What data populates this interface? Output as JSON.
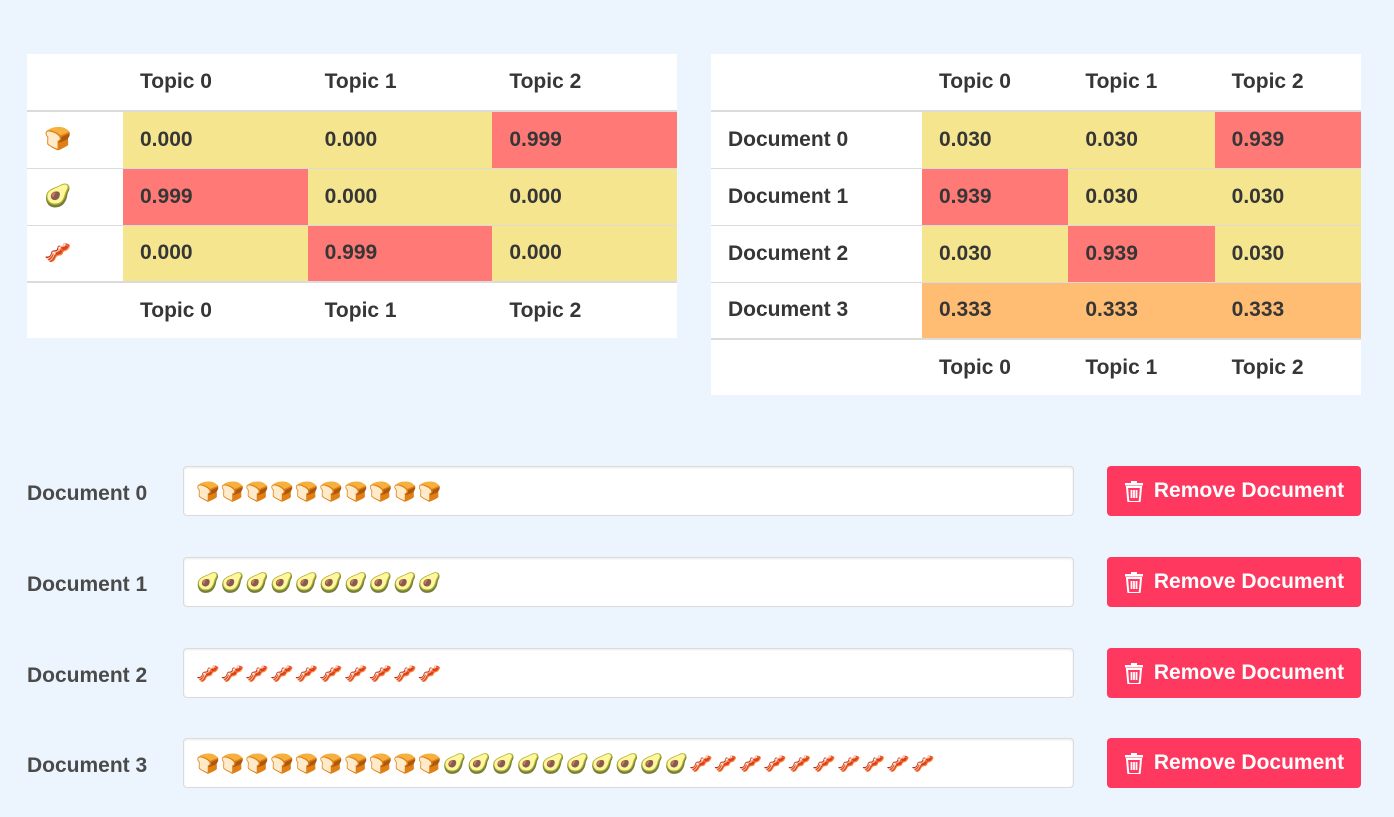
{
  "topics": [
    "Topic 0",
    "Topic 1",
    "Topic 2"
  ],
  "word_topic_table": {
    "rows": [
      {
        "word": "🍞",
        "values": [
          "0.000",
          "0.000",
          "0.999"
        ],
        "levels": [
          "lo",
          "lo",
          "hi"
        ]
      },
      {
        "word": "🥑",
        "values": [
          "0.999",
          "0.000",
          "0.000"
        ],
        "levels": [
          "hi",
          "lo",
          "lo"
        ]
      },
      {
        "word": "🥓",
        "values": [
          "0.000",
          "0.999",
          "0.000"
        ],
        "levels": [
          "lo",
          "hi",
          "lo"
        ]
      }
    ]
  },
  "doc_topic_table": {
    "rows": [
      {
        "doc": "Document 0",
        "values": [
          "0.030",
          "0.030",
          "0.939"
        ],
        "levels": [
          "lo",
          "lo",
          "hi"
        ]
      },
      {
        "doc": "Document 1",
        "values": [
          "0.939",
          "0.030",
          "0.030"
        ],
        "levels": [
          "hi",
          "lo",
          "lo"
        ]
      },
      {
        "doc": "Document 2",
        "values": [
          "0.030",
          "0.939",
          "0.030"
        ],
        "levels": [
          "lo",
          "hi",
          "lo"
        ]
      },
      {
        "doc": "Document 3",
        "values": [
          "0.333",
          "0.333",
          "0.333"
        ],
        "levels": [
          "mid",
          "mid",
          "mid"
        ]
      }
    ]
  },
  "level_colors": {
    "lo": "#f5e58f",
    "hi": "#ff7a76",
    "mid": "#ffbd73"
  },
  "documents": [
    {
      "label": "Document 0",
      "value": "🍞🍞🍞🍞🍞🍞🍞🍞🍞🍞"
    },
    {
      "label": "Document 1",
      "value": "🥑🥑🥑🥑🥑🥑🥑🥑🥑🥑"
    },
    {
      "label": "Document 2",
      "value": "🥓🥓🥓🥓🥓🥓🥓🥓🥓🥓"
    },
    {
      "label": "Document 3",
      "value": "🍞🍞🍞🍞🍞🍞🍞🍞🍞🍞🥑🥑🥑🥑🥑🥑🥑🥑🥑🥑🥓🥓🥓🥓🥓🥓🥓🥓🥓🥓"
    }
  ],
  "remove_button_label": "Remove Document",
  "remove_icon": "trash-icon",
  "accent_color": "#ff3860",
  "background_color": "#ecf4fd"
}
